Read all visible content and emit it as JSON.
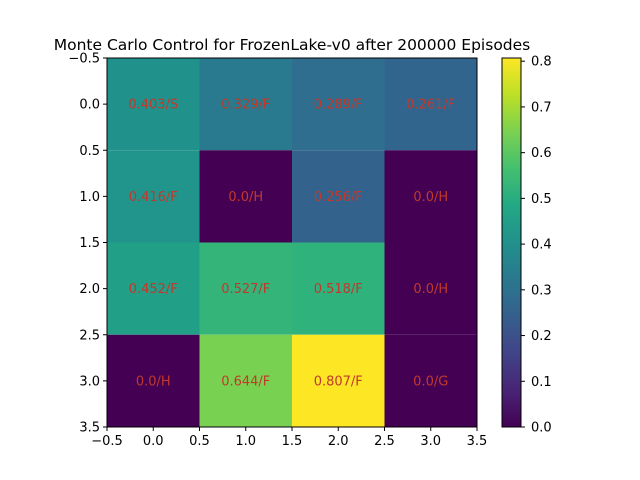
{
  "chart_data": {
    "type": "heatmap",
    "title": "Monte Carlo Control for FrozenLake-v0 after 200000 Episodes",
    "xlabel": "",
    "ylabel": "",
    "xlim": [
      -0.5,
      3.5
    ],
    "ylim": [
      3.5,
      -0.5
    ],
    "x_ticks": [
      "−0.5",
      "0.0",
      "0.5",
      "1.0",
      "1.5",
      "2.0",
      "2.5",
      "3.0",
      "3.5"
    ],
    "y_ticks": [
      "−0.5",
      "0.0",
      "0.5",
      "1.0",
      "1.5",
      "2.0",
      "2.5",
      "3.0",
      "3.5"
    ],
    "values": [
      [
        0.403,
        0.329,
        0.289,
        0.261
      ],
      [
        0.416,
        0.0,
        0.256,
        0.0
      ],
      [
        0.452,
        0.527,
        0.518,
        0.0
      ],
      [
        0.0,
        0.644,
        0.807,
        0.0
      ]
    ],
    "cell_labels": [
      [
        "0.403/S",
        "0.329/F",
        "0.289/F",
        "0.261/F"
      ],
      [
        "0.416/F",
        "0.0/H",
        "0.256/F",
        "0.0/H"
      ],
      [
        "0.452/F",
        "0.527/F",
        "0.518/F",
        "0.0/H"
      ],
      [
        "0.0/H",
        "0.644/F",
        "0.807/F",
        "0.0/G"
      ]
    ],
    "label_color": "#c0392b",
    "colormap": "viridis",
    "vmin": 0.0,
    "vmax": 0.807,
    "colorbar_ticks": [
      "0.0",
      "0.1",
      "0.2",
      "0.3",
      "0.4",
      "0.5",
      "0.6",
      "0.7",
      "0.8"
    ],
    "grid": false
  }
}
